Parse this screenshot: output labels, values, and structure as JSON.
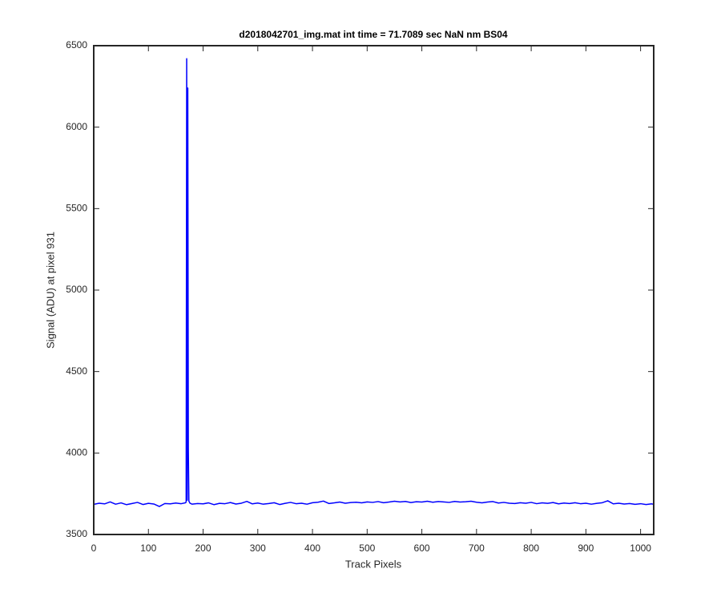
{
  "chart_data": {
    "type": "line",
    "title": "d2018042701_img.mat int time = 71.7089 sec  NaN nm BS04",
    "xlabel": "Track Pixels",
    "ylabel": "Signal (ADU) at pixel 931",
    "x": [
      0,
      10,
      20,
      30,
      40,
      50,
      60,
      70,
      80,
      90,
      100,
      110,
      120,
      130,
      140,
      150,
      160,
      168,
      169,
      170,
      171,
      172,
      173,
      174,
      176,
      180,
      190,
      200,
      210,
      220,
      230,
      240,
      250,
      260,
      270,
      280,
      290,
      300,
      310,
      320,
      330,
      340,
      350,
      360,
      370,
      380,
      390,
      400,
      410,
      420,
      430,
      440,
      450,
      460,
      470,
      480,
      490,
      500,
      510,
      520,
      530,
      540,
      550,
      560,
      570,
      580,
      590,
      600,
      610,
      620,
      630,
      640,
      650,
      660,
      670,
      680,
      690,
      700,
      710,
      720,
      730,
      740,
      750,
      760,
      770,
      780,
      790,
      800,
      810,
      820,
      830,
      840,
      850,
      860,
      870,
      880,
      890,
      900,
      910,
      920,
      930,
      940,
      950,
      960,
      970,
      980,
      990,
      1000,
      1010,
      1020,
      1023
    ],
    "series": [
      {
        "name": "Signal",
        "color": "#0000ff",
        "values": [
          3685,
          3692,
          3688,
          3700,
          3686,
          3694,
          3683,
          3690,
          3697,
          3684,
          3691,
          3687,
          3672,
          3690,
          3688,
          3693,
          3689,
          3695,
          3700,
          6420,
          3710,
          6240,
          4030,
          3705,
          3692,
          3686,
          3690,
          3688,
          3694,
          3683,
          3691,
          3689,
          3696,
          3687,
          3692,
          3703,
          3688,
          3693,
          3686,
          3690,
          3695,
          3684,
          3691,
          3697,
          3689,
          3692,
          3686,
          3695,
          3698,
          3705,
          3690,
          3694,
          3699,
          3692,
          3696,
          3698,
          3694,
          3700,
          3697,
          3702,
          3695,
          3699,
          3704,
          3700,
          3703,
          3696,
          3701,
          3699,
          3704,
          3698,
          3702,
          3700,
          3697,
          3703,
          3699,
          3701,
          3704,
          3698,
          3694,
          3699,
          3702,
          3693,
          3697,
          3692,
          3690,
          3695,
          3692,
          3697,
          3689,
          3694,
          3691,
          3696,
          3688,
          3693,
          3690,
          3695,
          3689,
          3692,
          3686,
          3691,
          3695,
          3707,
          3688,
          3692,
          3687,
          3690,
          3685,
          3689,
          3684,
          3688,
          3686
        ]
      }
    ],
    "xlim": [
      0,
      1024
    ],
    "ylim": [
      3500,
      6500
    ],
    "xticks": [
      0,
      100,
      200,
      300,
      400,
      500,
      600,
      700,
      800,
      900,
      1000
    ],
    "yticks": [
      3500,
      4000,
      4500,
      5000,
      5500,
      6000,
      6500
    ]
  }
}
